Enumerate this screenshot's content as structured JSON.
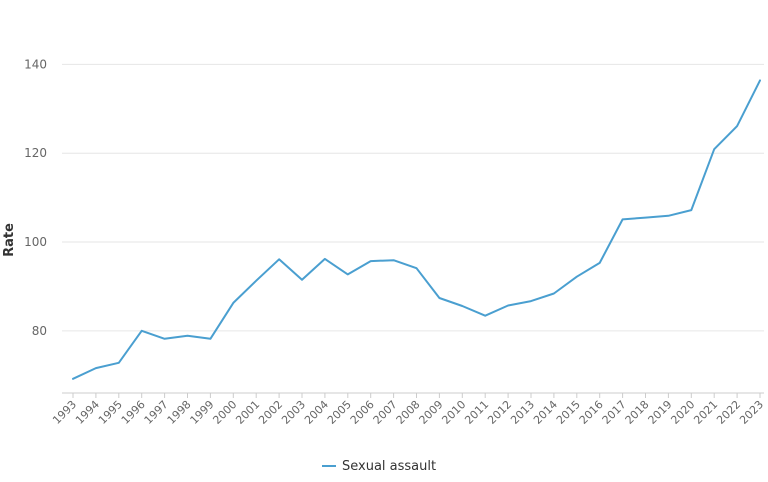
{
  "chart_data": {
    "type": "line",
    "title": "",
    "xlabel": "",
    "ylabel": "Rate",
    "ylim": [
      66,
      150
    ],
    "yticks": [
      80,
      100,
      120,
      140
    ],
    "grid": true,
    "legend_position": "bottom-center",
    "x": [
      "1993",
      "1994",
      "1995",
      "1996",
      "1997",
      "1998",
      "1999",
      "2000",
      "2001",
      "2002",
      "2003",
      "2004",
      "2005",
      "2006",
      "2007",
      "2008",
      "2009",
      "2010",
      "2011",
      "2012",
      "2013",
      "2014",
      "2015",
      "2016",
      "2017",
      "2018",
      "2019",
      "2020",
      "2021",
      "2022",
      "2023"
    ],
    "series": [
      {
        "name": "Sexual assault",
        "color": "#4a9fd0",
        "values": [
          69.2,
          71.6,
          72.8,
          80.0,
          78.2,
          78.9,
          78.2,
          86.3,
          91.3,
          96.1,
          91.5,
          96.2,
          92.7,
          95.7,
          95.9,
          94.1,
          87.4,
          85.6,
          83.4,
          85.7,
          86.7,
          88.4,
          92.2,
          95.3,
          105.1,
          105.5,
          105.9,
          107.2,
          120.9,
          126.1,
          136.4
        ]
      }
    ]
  }
}
